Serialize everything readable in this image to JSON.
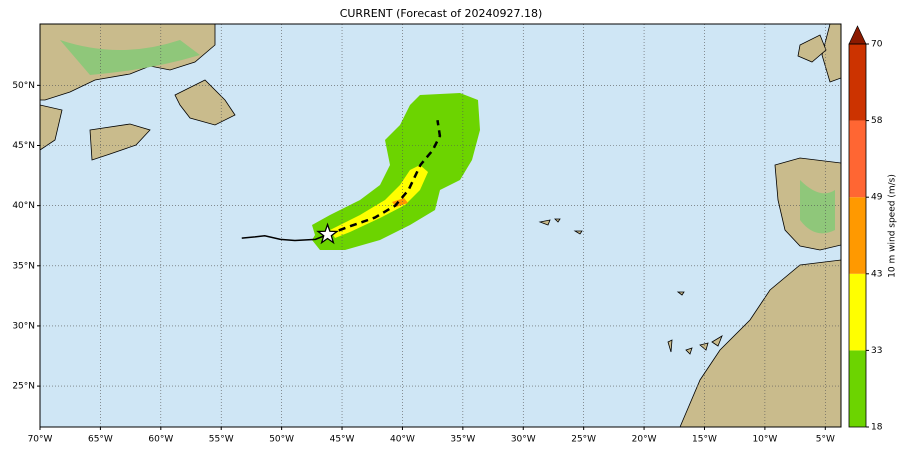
{
  "chart_data": {
    "type": "map",
    "title": "CURRENT (Forecast of 20240927.18)",
    "xlim": [
      -70,
      -3.7
    ],
    "ylim": [
      21.6,
      55.1
    ],
    "xticks": [
      {
        "value": -70,
        "label": "70°W"
      },
      {
        "value": -65,
        "label": "65°W"
      },
      {
        "value": -60,
        "label": "60°W"
      },
      {
        "value": -55,
        "label": "55°W"
      },
      {
        "value": -50,
        "label": "50°W"
      },
      {
        "value": -45,
        "label": "45°W"
      },
      {
        "value": -40,
        "label": "40°W"
      },
      {
        "value": -35,
        "label": "35°W"
      },
      {
        "value": -30,
        "label": "30°W"
      },
      {
        "value": -25,
        "label": "25°W"
      },
      {
        "value": -20,
        "label": "20°W"
      },
      {
        "value": -15,
        "label": "15°W"
      },
      {
        "value": -10,
        "label": "10°W"
      },
      {
        "value": -5,
        "label": "5°W"
      }
    ],
    "yticks": [
      {
        "value": 25,
        "label": "25°N"
      },
      {
        "value": 30,
        "label": "30°N"
      },
      {
        "value": 35,
        "label": "35°N"
      },
      {
        "value": 40,
        "label": "40°N"
      },
      {
        "value": 45,
        "label": "45°N"
      },
      {
        "value": 50,
        "label": "50°N"
      }
    ],
    "grid": true,
    "past_track": {
      "color": "#000000",
      "lon": [
        -53.3,
        -52.2,
        -51.4,
        -50.1,
        -48.9,
        -47.2,
        -46.2
      ],
      "lat": [
        37.3,
        37.4,
        37.5,
        37.2,
        37.1,
        37.2,
        37.6
      ]
    },
    "forecast_track": {
      "color": "#000000",
      "lon": [
        -46.2,
        -44.3,
        -42.3,
        -40.6,
        -39.5,
        -38.5,
        -37.5,
        -36.9,
        -37.1
      ],
      "lat": [
        37.6,
        38.3,
        39.0,
        40.0,
        41.3,
        43.4,
        44.6,
        45.8,
        47.1
      ]
    },
    "colorbar": {
      "label": "10 m wind speed (m/s)",
      "ticks": [
        18,
        33,
        43,
        49,
        58,
        70
      ],
      "colors": [
        "#6cd400",
        "#ffff00",
        "#ff9900",
        "#ff6633",
        "#cc3300"
      ],
      "extend_color": "#8b1a00"
    }
  }
}
